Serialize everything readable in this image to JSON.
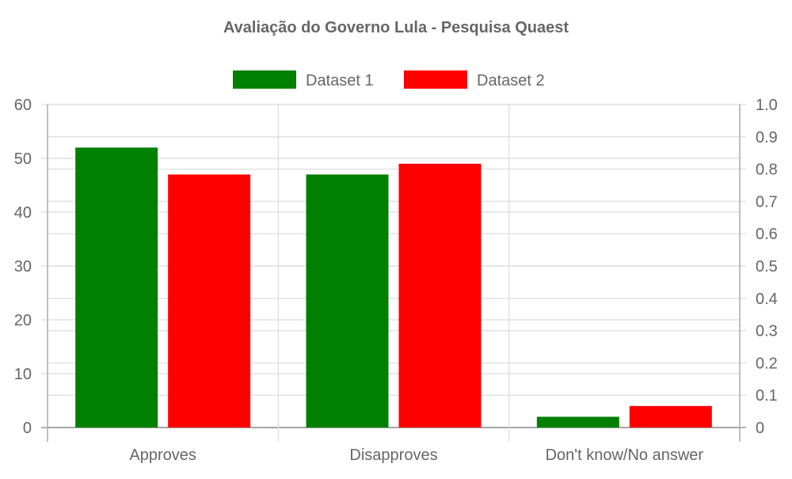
{
  "chart_data": {
    "type": "bar",
    "title": "Avaliação do Governo Lula - Pesquisa Quaest",
    "categories": [
      "Approves",
      "Disapproves",
      "Don't know/No answer"
    ],
    "series": [
      {
        "name": "Dataset 1",
        "values": [
          52,
          47,
          2
        ],
        "color": "#008000"
      },
      {
        "name": "Dataset 2",
        "values": [
          47,
          49,
          4
        ],
        "color": "#ff0000"
      }
    ],
    "ylim": [
      0,
      60
    ],
    "yticks": [
      "0",
      "10",
      "20",
      "30",
      "40",
      "50",
      "60"
    ],
    "y2lim": [
      0,
      1.0
    ],
    "y2ticks": [
      "0",
      "0.1",
      "0.2",
      "0.3",
      "0.4",
      "0.5",
      "0.6",
      "0.7",
      "0.8",
      "0.9",
      "1.0"
    ],
    "grid": true,
    "legend": "top"
  }
}
